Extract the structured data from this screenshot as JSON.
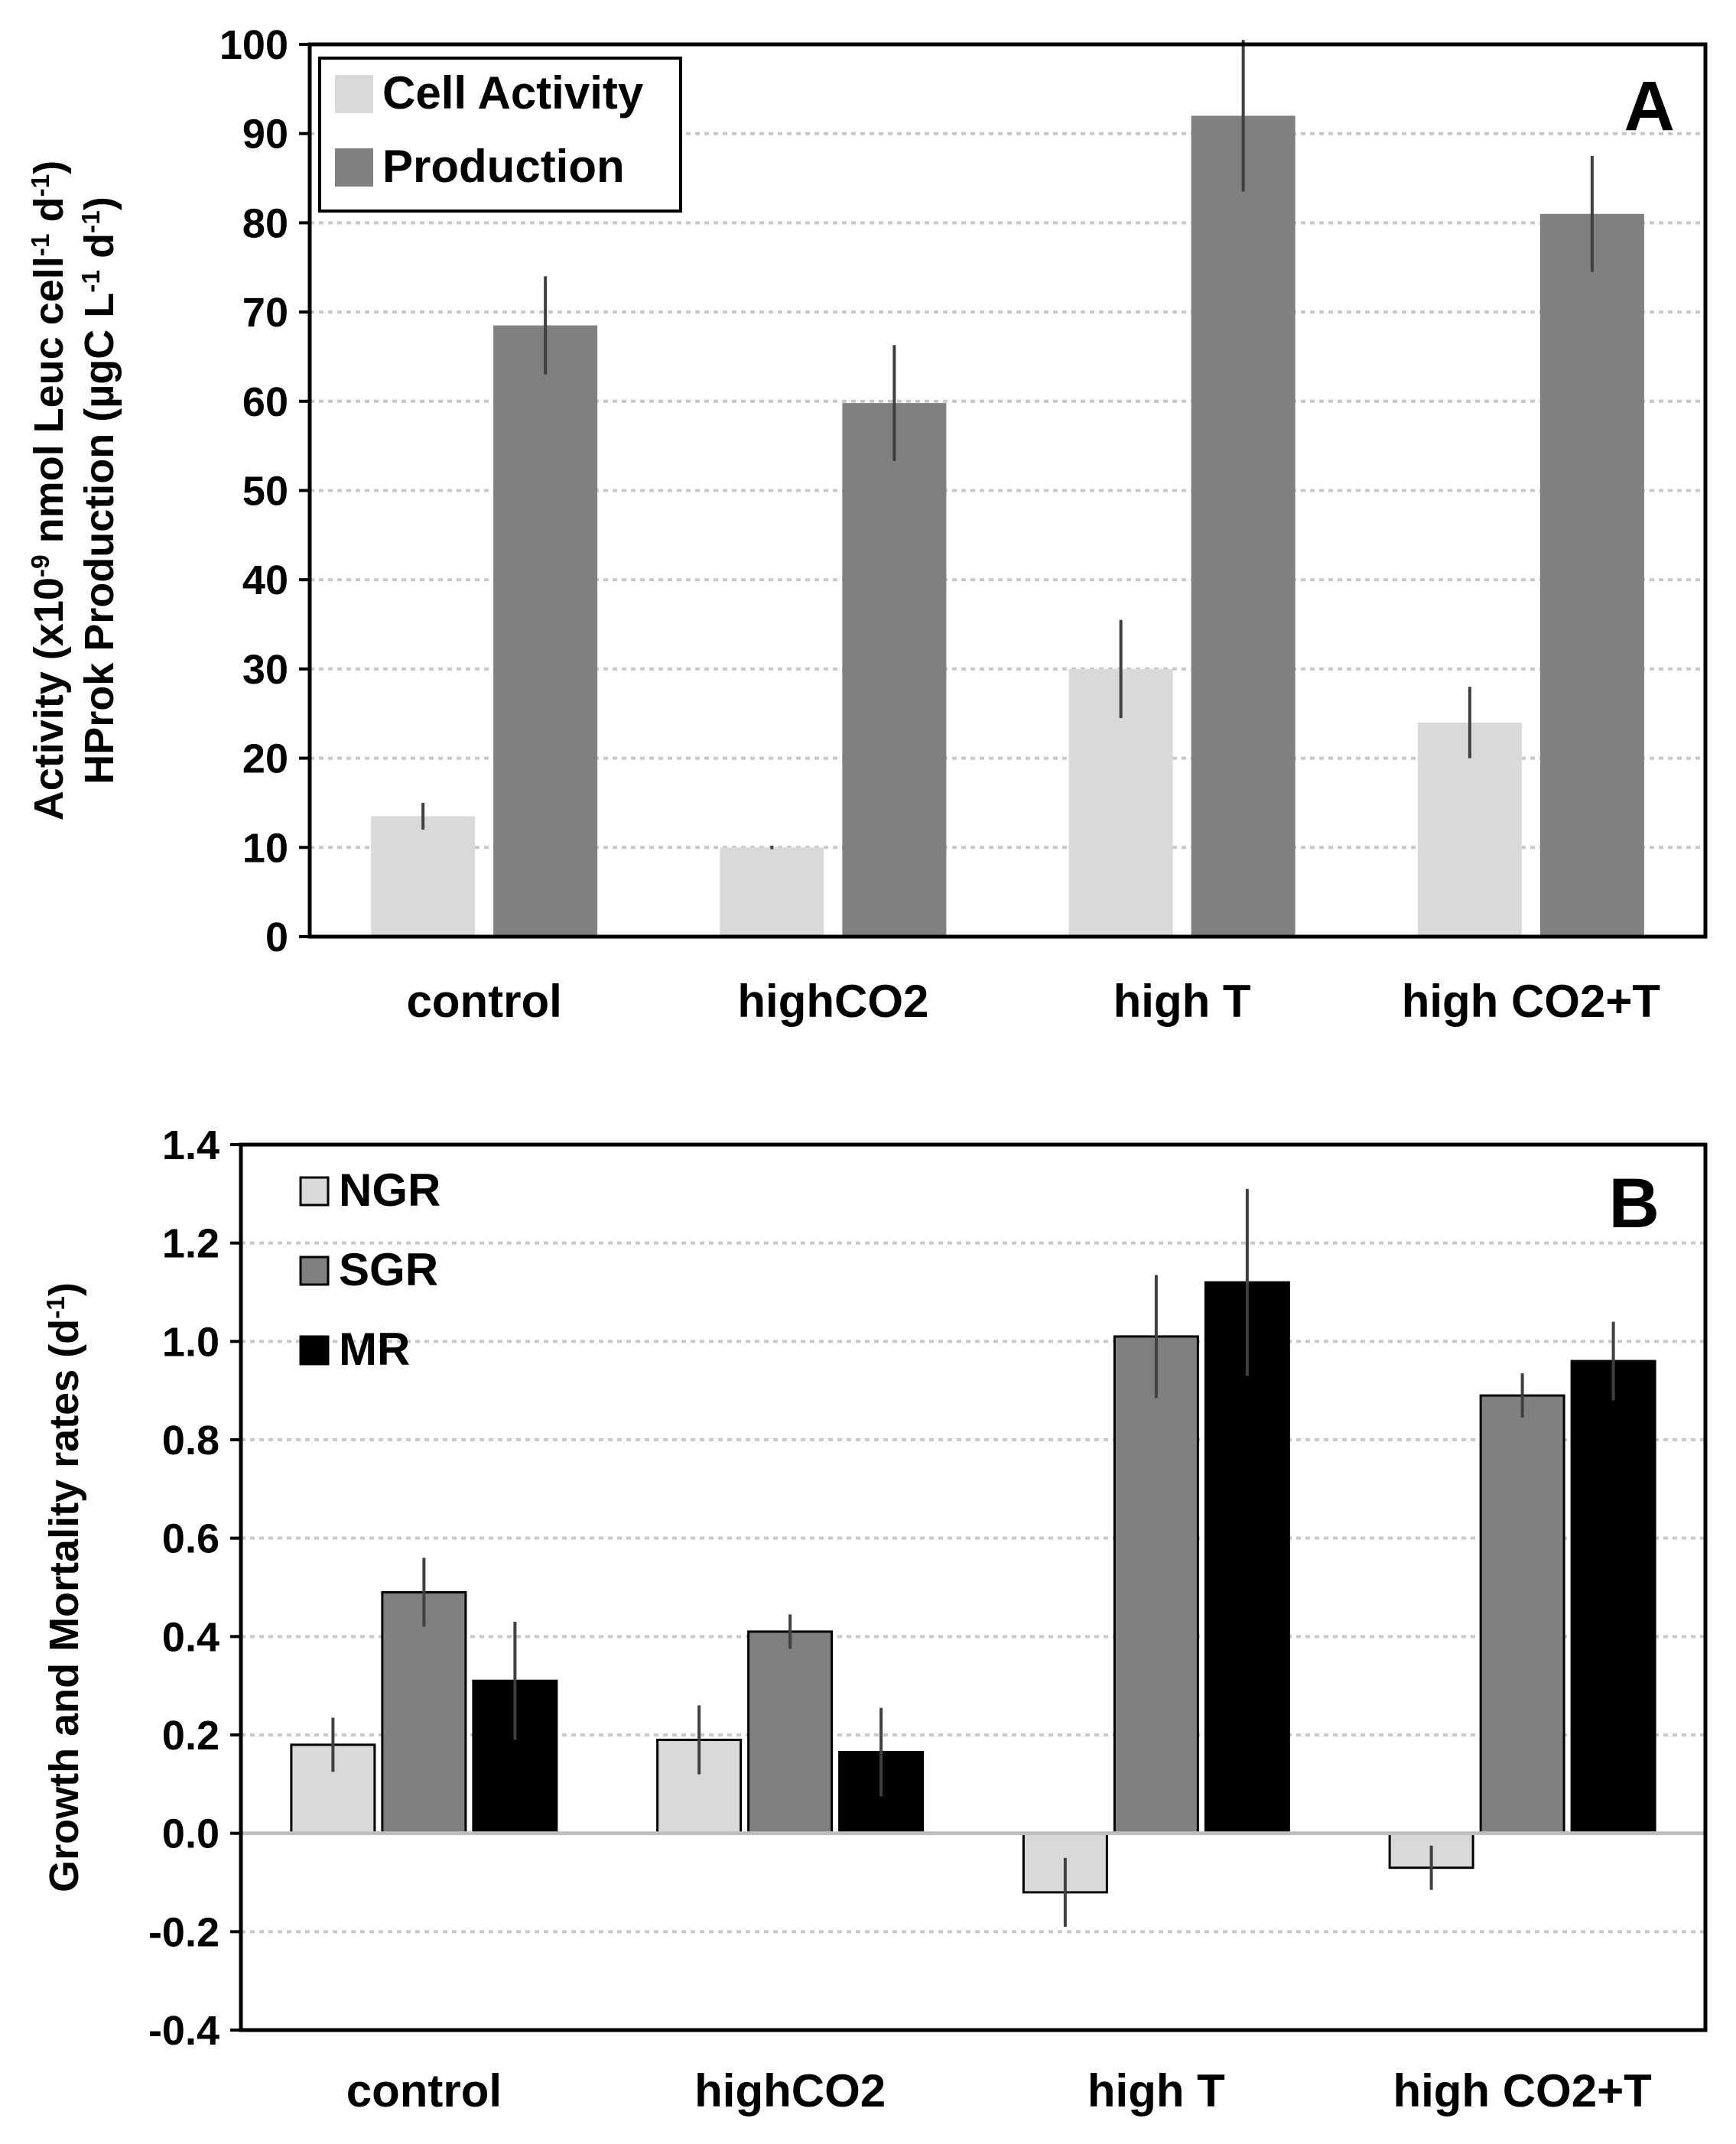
{
  "chart_data": [
    {
      "type": "bar",
      "panel_label": "A",
      "categories": [
        "control",
        "highCO2",
        "high T",
        "high CO2+T"
      ],
      "ylabel_line1": "Activity (x10-9 nmol Leuc cell-1 d-1)",
      "ylabel_line2": "HProk Production (µgC L-1 d-1)",
      "ylim": [
        0,
        100
      ],
      "yticks": [
        0,
        10,
        20,
        30,
        40,
        50,
        60,
        70,
        80,
        90,
        100
      ],
      "grid": true,
      "legend_position": "top-left",
      "series": [
        {
          "name": "Cell Activity",
          "color": "#d9d9d9",
          "values": [
            13.5,
            10,
            30,
            24
          ],
          "errors": [
            1.5,
            0.2,
            5.5,
            4
          ]
        },
        {
          "name": "Production",
          "color": "#808080",
          "values": [
            68.5,
            59.8,
            92,
            81
          ],
          "errors": [
            5.5,
            6.5,
            8.5,
            6.5
          ]
        }
      ]
    },
    {
      "type": "bar",
      "panel_label": "B",
      "categories": [
        "control",
        "highCO2",
        "high T",
        "high CO2+T"
      ],
      "ylabel": "Growth and Mortality rates (d-1)",
      "ylim": [
        -0.4,
        1.4
      ],
      "yticks": [
        "-0.4",
        "-0.2",
        "0.0",
        "0.2",
        "0.4",
        "0.6",
        "0.8",
        "1.0",
        "1.2",
        "1.4"
      ],
      "grid": true,
      "legend_position": "top-left",
      "series": [
        {
          "name": "NGR",
          "color": "#d9d9d9",
          "values": [
            0.18,
            0.19,
            -0.12,
            -0.07
          ],
          "errors": [
            0.055,
            0.07,
            0.07,
            0.045
          ]
        },
        {
          "name": "SGR",
          "color": "#808080",
          "values": [
            0.49,
            0.41,
            1.01,
            0.89
          ],
          "errors": [
            0.07,
            0.035,
            0.125,
            0.045
          ]
        },
        {
          "name": "MR",
          "color": "#000000",
          "values": [
            0.31,
            0.165,
            1.12,
            0.96
          ],
          "errors": [
            0.12,
            0.09,
            0.19,
            0.08
          ]
        }
      ]
    }
  ]
}
